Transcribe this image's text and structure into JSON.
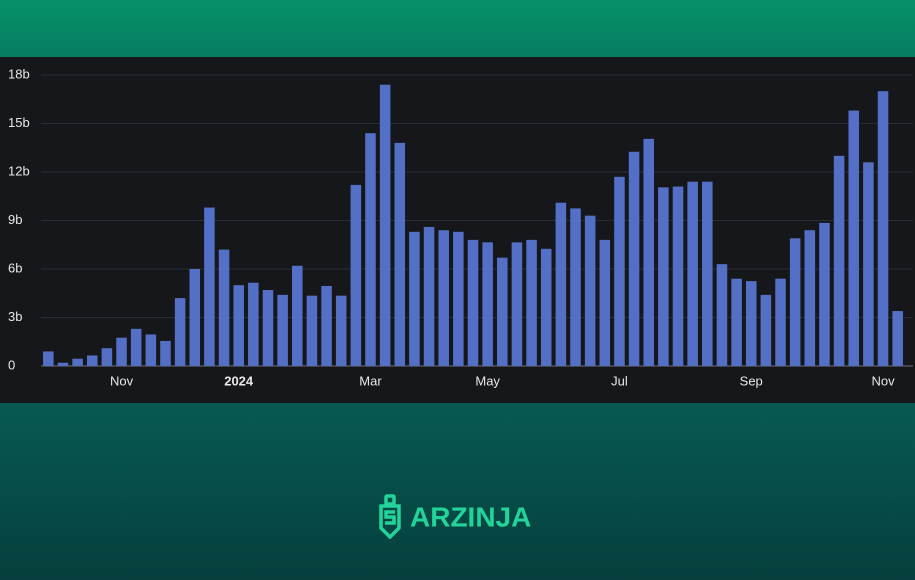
{
  "chart_data": {
    "type": "bar",
    "categories": [
      null,
      null,
      null,
      null,
      null,
      "Nov",
      null,
      null,
      null,
      null,
      null,
      null,
      null,
      "2024",
      null,
      null,
      null,
      null,
      null,
      null,
      null,
      null,
      "Mar",
      null,
      null,
      null,
      null,
      null,
      null,
      null,
      "May",
      null,
      null,
      null,
      null,
      null,
      null,
      null,
      null,
      "Jul",
      null,
      null,
      null,
      null,
      null,
      null,
      null,
      null,
      "Sep",
      null,
      null,
      null,
      null,
      null,
      null,
      null,
      null,
      "Nov",
      null
    ],
    "values": [
      0.9,
      0.2,
      0.45,
      0.65,
      1.1,
      1.75,
      2.3,
      1.95,
      1.55,
      4.2,
      6.0,
      9.8,
      7.2,
      5.0,
      5.15,
      4.7,
      4.4,
      6.2,
      4.35,
      4.95,
      4.35,
      11.2,
      14.4,
      17.4,
      13.8,
      8.3,
      8.6,
      8.4,
      8.3,
      7.8,
      7.65,
      6.7,
      7.65,
      7.8,
      7.25,
      10.1,
      9.75,
      9.3,
      7.8,
      11.7,
      13.25,
      14.05,
      11.05,
      11.1,
      11.4,
      11.4,
      6.3,
      5.4,
      5.25,
      4.4,
      5.4,
      7.9,
      8.4,
      8.85,
      13.0,
      15.8,
      12.6,
      17.0,
      3.4
    ],
    "color": "#5470c6",
    "ylim": [
      0,
      18
    ],
    "yticks": [
      0,
      {
        "value": 3,
        "label": "3b"
      },
      {
        "value": 6,
        "label": "6b"
      },
      {
        "value": 9,
        "label": "9b"
      },
      {
        "value": 12,
        "label": "12b"
      },
      {
        "value": 15,
        "label": "15b"
      },
      {
        "value": 18,
        "label": "18b"
      }
    ],
    "grid": true
  },
  "brand": "ARZINJA"
}
